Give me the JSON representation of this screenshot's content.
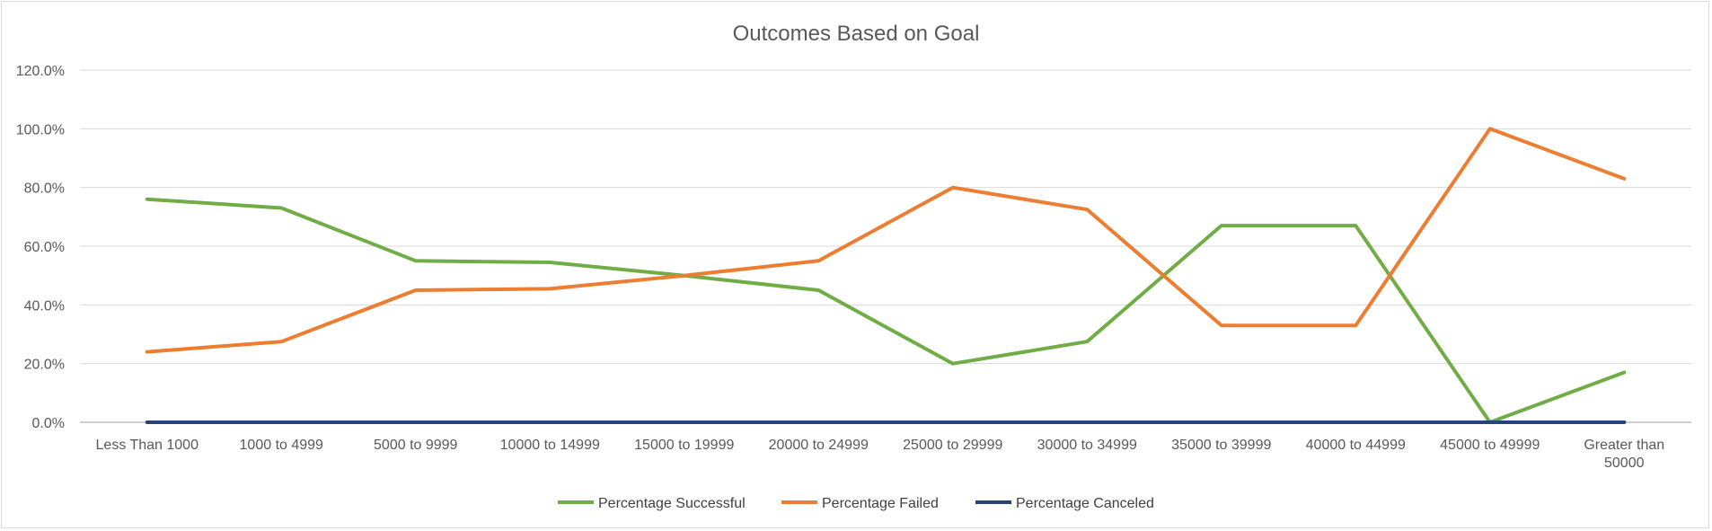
{
  "chart_data": {
    "type": "line",
    "title": "Outcomes Based on Goal",
    "xlabel": "",
    "ylabel": "",
    "categories": [
      "Less Than 1000",
      "1000 to 4999",
      "5000 to 9999",
      "10000 to 14999",
      "15000 to 19999",
      "20000 to 24999",
      "25000 to 29999",
      "30000 to 34999",
      "35000 to 39999",
      "40000 to 44999",
      "45000 to 49999",
      "Greater than 50000"
    ],
    "category_lines": [
      [
        "Less Than 1000"
      ],
      [
        "1000 to 4999"
      ],
      [
        "5000 to 9999"
      ],
      [
        "10000 to 14999"
      ],
      [
        "15000 to 19999"
      ],
      [
        "20000 to 24999"
      ],
      [
        "25000 to 29999"
      ],
      [
        "30000 to 34999"
      ],
      [
        "35000 to 39999"
      ],
      [
        "40000 to 44999"
      ],
      [
        "45000 to 49999"
      ],
      [
        "Greater than",
        "50000"
      ]
    ],
    "ylim": [
      0,
      120
    ],
    "ytick_values": [
      0,
      20,
      40,
      60,
      80,
      100,
      120
    ],
    "ytick_labels": [
      "0.0%",
      "20.0%",
      "40.0%",
      "60.0%",
      "80.0%",
      "100.0%",
      "120.0%"
    ],
    "grid": true,
    "legend_position": "bottom",
    "series": [
      {
        "name": "Percentage Successful",
        "color": "#70ad47",
        "values": [
          76,
          73,
          55,
          54.5,
          50,
          45,
          20,
          27.5,
          67,
          67,
          0,
          17
        ]
      },
      {
        "name": "Percentage Failed",
        "color": "#ed7d31",
        "values": [
          24,
          27.5,
          45,
          45.5,
          50,
          55,
          80,
          72.5,
          33,
          33,
          100,
          83
        ]
      },
      {
        "name": "Percentage Canceled",
        "color": "#264478",
        "values": [
          0,
          0,
          0,
          0,
          0,
          0,
          0,
          0,
          0,
          0,
          0,
          0
        ]
      }
    ]
  }
}
